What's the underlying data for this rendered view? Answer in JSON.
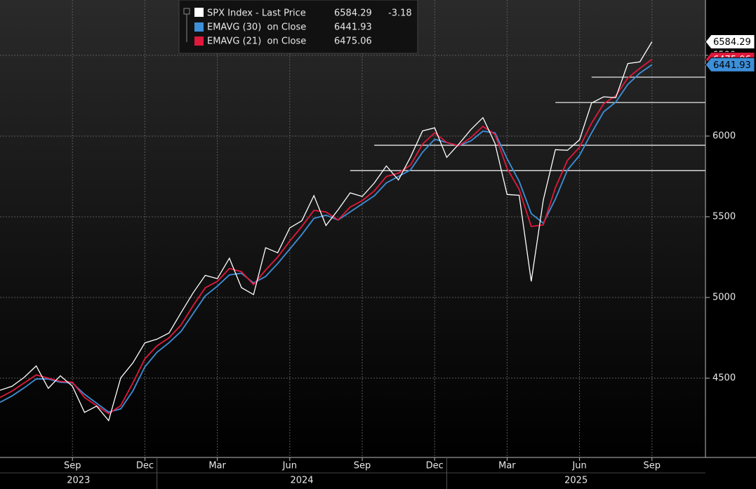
{
  "chart_data": {
    "type": "line",
    "categories": [
      null,
      null,
      null,
      null,
      null,
      null,
      "Sep",
      null,
      null,
      null,
      null,
      null,
      "Dec",
      null,
      null,
      null,
      null,
      null,
      "Mar",
      null,
      null,
      null,
      null,
      null,
      "Jun",
      null,
      null,
      null,
      null,
      null,
      "Sep",
      null,
      null,
      null,
      null,
      null,
      "Dec",
      null,
      null,
      null,
      null,
      null,
      "Mar",
      null,
      null,
      null,
      null,
      null,
      "Jun",
      null,
      null,
      null,
      null,
      null,
      "Sep",
      null,
      null,
      null,
      null
    ],
    "x_groups": [
      {
        "label": "2023",
        "start": 0
      },
      {
        "label": "2024",
        "start": 13
      },
      {
        "label": "2025",
        "start": 37
      }
    ],
    "series": [
      {
        "name": "SPX Index - Last Price",
        "color": "#ffffff",
        "change": -3.18,
        "values": [
          4425,
          4450,
          4505,
          4576,
          4437,
          4515,
          4450,
          4288,
          4327,
          4237,
          4502,
          4594,
          4719,
          4742,
          4780,
          4906,
          5029,
          5137,
          5117,
          5243,
          5061,
          5018,
          5308,
          5277,
          5431,
          5475,
          5631,
          5446,
          5543,
          5648,
          5626,
          5709,
          5815,
          5728,
          5870,
          6032,
          6051,
          5868,
          5950,
          6040,
          6114,
          5954,
          5638,
          5633,
          5100,
          5604,
          5916,
          5912,
          5977,
          6205,
          6243,
          6238,
          6449,
          6460,
          6584.29,
          null,
          null,
          null,
          null
        ]
      },
      {
        "name": "EMAVG (30)  on Close",
        "color": "#3d8fd8",
        "values": [
          4350,
          4390,
          4440,
          4495,
          4495,
          4475,
          4470,
          4400,
          4345,
          4290,
          4310,
          4420,
          4570,
          4660,
          4720,
          4790,
          4900,
          5010,
          5070,
          5140,
          5150,
          5090,
          5130,
          5210,
          5300,
          5390,
          5490,
          5510,
          5480,
          5530,
          5580,
          5630,
          5710,
          5750,
          5790,
          5900,
          5980,
          5960,
          5940,
          5970,
          6030,
          6020,
          5860,
          5720,
          5520,
          5460,
          5610,
          5790,
          5880,
          6020,
          6150,
          6210,
          6320,
          6390,
          6441.93,
          null,
          null,
          null,
          null
        ]
      },
      {
        "name": "EMAVG (21)  on Close",
        "color": "#e0193c",
        "values": [
          4380,
          4420,
          4470,
          4520,
          4500,
          4480,
          4475,
          4380,
          4330,
          4280,
          4330,
          4470,
          4620,
          4700,
          4750,
          4830,
          4950,
          5060,
          5100,
          5180,
          5160,
          5080,
          5170,
          5250,
          5350,
          5440,
          5540,
          5530,
          5480,
          5560,
          5600,
          5660,
          5750,
          5770,
          5820,
          5950,
          6020,
          5960,
          5940,
          5990,
          6060,
          6010,
          5800,
          5670,
          5440,
          5450,
          5680,
          5850,
          5930,
          6080,
          6200,
          6250,
          6360,
          6420,
          6475.06,
          null,
          null,
          null,
          null
        ]
      }
    ],
    "reference_lines": [
      {
        "value": 6365,
        "start": 49
      },
      {
        "value": 6208,
        "start": 46
      },
      {
        "value": 5943,
        "start": 31
      },
      {
        "value": 5786,
        "start": 29
      }
    ],
    "ylim": [
      4009,
      6843
    ],
    "yticks": [
      4500,
      5000,
      5500,
      6000,
      6500
    ],
    "grid": true
  }
}
